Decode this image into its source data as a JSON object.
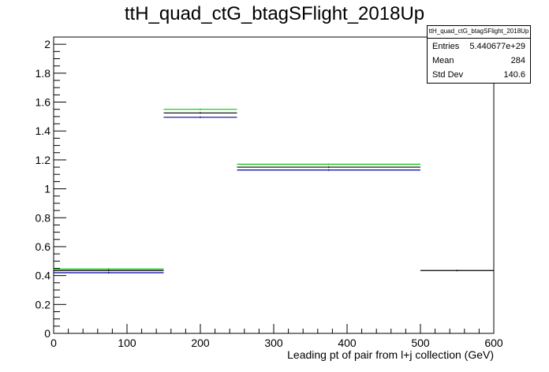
{
  "chart_data": {
    "type": "histogram",
    "title": "ttH_quad_ctG_btagSFlight_2018Up",
    "xlabel": "Leading pt of pair from l+j collection (GeV)",
    "ylabel": "",
    "xlim": [
      0,
      600
    ],
    "ylim": [
      0,
      2.05
    ],
    "x_ticks": [
      "0",
      "100",
      "200",
      "300",
      "400",
      "500",
      "600"
    ],
    "y_ticks": [
      "0",
      "0.2",
      "0.4",
      "0.6",
      "0.8",
      "1",
      "1.2",
      "1.4",
      "1.6",
      "1.8",
      "2"
    ],
    "bin_edges": [
      0,
      150,
      250,
      500,
      600
    ],
    "series": [
      {
        "color": "#00cc00",
        "values": [
          0.445,
          1.55,
          1.17,
          null
        ]
      },
      {
        "color": "#000000",
        "values": [
          0.435,
          1.525,
          1.15,
          0.435
        ]
      },
      {
        "color": "#000099",
        "values": [
          0.42,
          1.495,
          1.13,
          null
        ]
      }
    ],
    "grid": false,
    "legend": "none",
    "stats": {
      "title": "ttH_quad_ctG_btagSFlight_2018Up",
      "entries_label": "Entries",
      "entries": "5.440677e+29",
      "mean_label": "Mean",
      "mean": "284",
      "stddev_label": "Std Dev",
      "stddev": "140.6"
    }
  }
}
